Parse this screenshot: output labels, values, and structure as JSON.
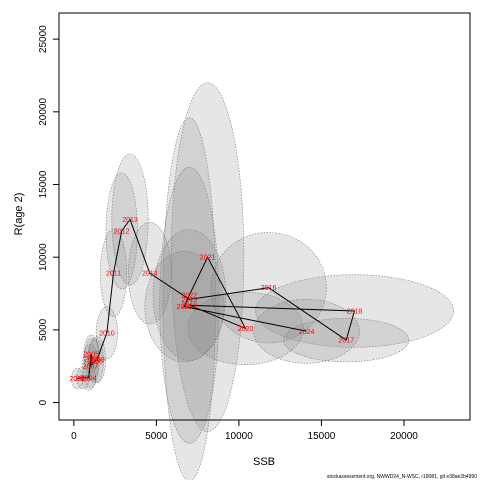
{
  "chart_data": {
    "type": "line",
    "xlabel": "SSB",
    "ylabel": "R(age 2)",
    "xlim": [
      -900,
      24000
    ],
    "ylim": [
      -1200,
      26800
    ],
    "x_ticks": [
      0,
      5000,
      10000,
      15000,
      20000
    ],
    "y_ticks": [
      0,
      5000,
      10000,
      15000,
      20000,
      25000
    ],
    "footnote": "stockassessment.org, NWWD24_N-WSC, r18081, git e38ae2b4990",
    "colors": {
      "line": "#000000",
      "labels": "#ff0000",
      "ellipse_fill": "#808080",
      "ellipse_stroke": "#777777"
    },
    "points": [
      {
        "year": "2002",
        "ssb": 200,
        "rec": 1650,
        "sx": 350,
        "sy": 700
      },
      {
        "year": "2003",
        "ssb": 550,
        "rec": 1700,
        "sx": 380,
        "sy": 750
      },
      {
        "year": "2004",
        "ssb": 900,
        "rec": 1700,
        "sx": 420,
        "sy": 850
      },
      {
        "year": "2005",
        "ssb": 1050,
        "rec": 3350,
        "sx": 450,
        "sy": 1300
      },
      {
        "year": "2006",
        "ssb": 1100,
        "rec": 3000,
        "sx": 480,
        "sy": 1400
      },
      {
        "year": "2007",
        "ssb": 1000,
        "rec": 2500,
        "sx": 470,
        "sy": 1500
      },
      {
        "year": "2008",
        "ssb": 1300,
        "rec": 2850,
        "sx": 500,
        "sy": 1500
      },
      {
        "year": "2009",
        "ssb": 1400,
        "rec": 2950,
        "sx": 520,
        "sy": 1600
      },
      {
        "year": "2010",
        "ssb": 2000,
        "rec": 4800,
        "sx": 650,
        "sy": 1800
      },
      {
        "year": "2011",
        "ssb": 2400,
        "rec": 8900,
        "sx": 800,
        "sy": 3000
      },
      {
        "year": "2012",
        "ssb": 2900,
        "rec": 11800,
        "sx": 950,
        "sy": 4000
      },
      {
        "year": "2013",
        "ssb": 3400,
        "rec": 12600,
        "sx": 1100,
        "sy": 4500
      },
      {
        "year": "2014",
        "ssb": 4600,
        "rec": 8900,
        "sx": 1300,
        "sy": 3500
      },
      {
        "year": "2015",
        "ssb": 7000,
        "rec": 7100,
        "sx": 1600,
        "sy": 12500
      },
      {
        "year": "2016",
        "ssb": 11800,
        "rec": 7900,
        "sx": 3500,
        "sy": 3800
      },
      {
        "year": "2017",
        "ssb": 16500,
        "rec": 4300,
        "sx": 3800,
        "sy": 1500
      },
      {
        "year": "2018",
        "ssb": 17000,
        "rec": 6300,
        "sx": 6000,
        "sy": 2500
      },
      {
        "year": "2019",
        "ssb": 7000,
        "rec": 6700,
        "sx": 1800,
        "sy": 9500
      },
      {
        "year": "2020",
        "ssb": 10400,
        "rec": 5100,
        "sx": 3500,
        "sy": 2500
      },
      {
        "year": "2021",
        "ssb": 8100,
        "rec": 10000,
        "sx": 2200,
        "sy": 12000
      },
      {
        "year": "2022",
        "ssb": 7000,
        "rec": 7400,
        "sx": 2200,
        "sy": 4500
      },
      {
        "year": "2023",
        "ssb": 6700,
        "rec": 6600,
        "sx": 2400,
        "sy": 3800
      },
      {
        "year": "2024",
        "ssb": 14100,
        "rec": 4900,
        "sx": 3200,
        "sy": 2200
      }
    ],
    "path_order": [
      "2002",
      "2003",
      "2004",
      "2005",
      "2006",
      "2007",
      "2008",
      "2009",
      "2010",
      "2011",
      "2012",
      "2013",
      "2014",
      "2015",
      "2016",
      "2017",
      "2018",
      "2019",
      "2020",
      "2021",
      "2022",
      "2023",
      "2024"
    ]
  }
}
